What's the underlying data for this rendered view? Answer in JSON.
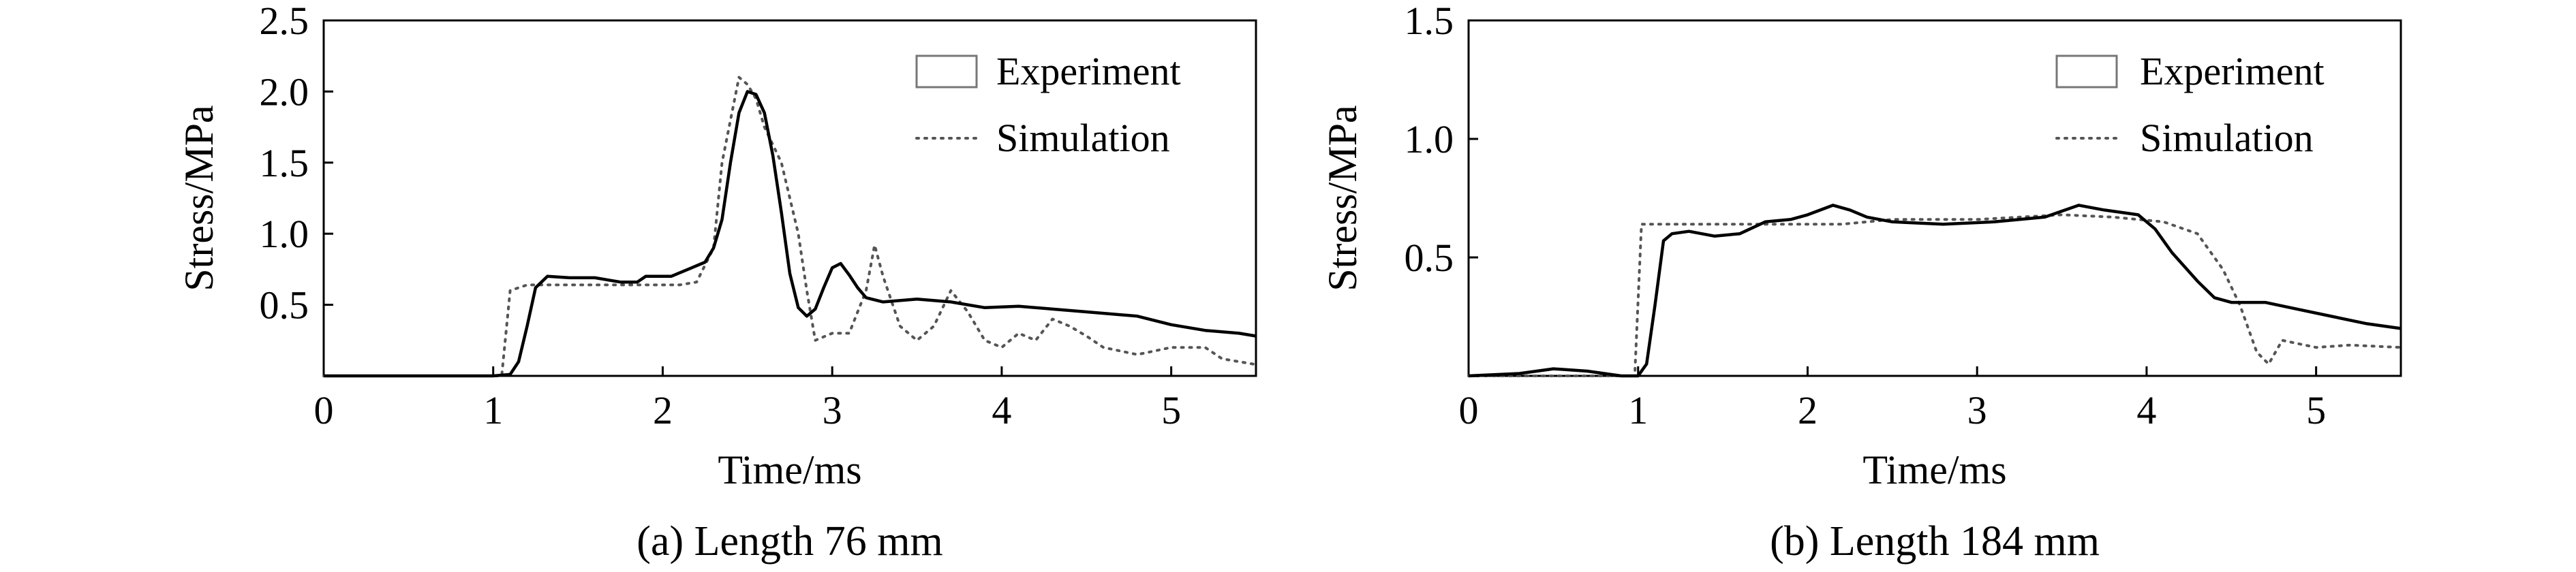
{
  "chart_data": [
    {
      "type": "line",
      "caption": "(a) Length 76 mm",
      "xlabel": "Time/ms",
      "ylabel": "Stress/MPa",
      "xlim": [
        0,
        5.5
      ],
      "ylim": [
        0,
        2.5
      ],
      "x_ticks": [
        "0",
        "1",
        "2",
        "3",
        "4",
        "5"
      ],
      "y_ticks": [
        "0.5",
        "1.0",
        "1.5",
        "2.0",
        "2.5"
      ],
      "grid": false,
      "legend_position": "top-right",
      "series": [
        {
          "name": "Experiment",
          "style": "solid",
          "color": "#000000",
          "points": [
            [
              0,
              0
            ],
            [
              1.0,
              0
            ],
            [
              1.1,
              0.01
            ],
            [
              1.15,
              0.1
            ],
            [
              1.2,
              0.35
            ],
            [
              1.25,
              0.62
            ],
            [
              1.32,
              0.7
            ],
            [
              1.45,
              0.69
            ],
            [
              1.6,
              0.69
            ],
            [
              1.75,
              0.66
            ],
            [
              1.85,
              0.66
            ],
            [
              1.9,
              0.7
            ],
            [
              2.05,
              0.7
            ],
            [
              2.15,
              0.75
            ],
            [
              2.25,
              0.8
            ],
            [
              2.3,
              0.9
            ],
            [
              2.35,
              1.1
            ],
            [
              2.4,
              1.5
            ],
            [
              2.45,
              1.85
            ],
            [
              2.5,
              2.0
            ],
            [
              2.55,
              1.98
            ],
            [
              2.6,
              1.85
            ],
            [
              2.65,
              1.55
            ],
            [
              2.7,
              1.15
            ],
            [
              2.75,
              0.72
            ],
            [
              2.8,
              0.48
            ],
            [
              2.85,
              0.42
            ],
            [
              2.9,
              0.47
            ],
            [
              2.95,
              0.62
            ],
            [
              3.0,
              0.76
            ],
            [
              3.05,
              0.79
            ],
            [
              3.1,
              0.71
            ],
            [
              3.15,
              0.62
            ],
            [
              3.2,
              0.55
            ],
            [
              3.3,
              0.52
            ],
            [
              3.5,
              0.54
            ],
            [
              3.7,
              0.52
            ],
            [
              3.9,
              0.48
            ],
            [
              4.1,
              0.49
            ],
            [
              4.3,
              0.47
            ],
            [
              4.5,
              0.45
            ],
            [
              4.8,
              0.42
            ],
            [
              5.0,
              0.36
            ],
            [
              5.2,
              0.32
            ],
            [
              5.4,
              0.3
            ],
            [
              5.5,
              0.28
            ]
          ]
        },
        {
          "name": "Simulation",
          "style": "dotted",
          "color": "#555555",
          "points": [
            [
              0,
              0
            ],
            [
              1.05,
              0
            ],
            [
              1.1,
              0.6
            ],
            [
              1.2,
              0.64
            ],
            [
              1.5,
              0.64
            ],
            [
              1.8,
              0.64
            ],
            [
              2.1,
              0.64
            ],
            [
              2.2,
              0.66
            ],
            [
              2.3,
              0.9
            ],
            [
              2.35,
              1.5
            ],
            [
              2.45,
              2.1
            ],
            [
              2.5,
              2.05
            ],
            [
              2.55,
              1.95
            ],
            [
              2.6,
              1.75
            ],
            [
              2.7,
              1.5
            ],
            [
              2.8,
              1.0
            ],
            [
              2.85,
              0.6
            ],
            [
              2.9,
              0.25
            ],
            [
              3.0,
              0.3
            ],
            [
              3.1,
              0.3
            ],
            [
              3.2,
              0.6
            ],
            [
              3.25,
              0.92
            ],
            [
              3.3,
              0.7
            ],
            [
              3.4,
              0.35
            ],
            [
              3.5,
              0.25
            ],
            [
              3.6,
              0.35
            ],
            [
              3.7,
              0.6
            ],
            [
              3.8,
              0.45
            ],
            [
              3.9,
              0.25
            ],
            [
              4.0,
              0.2
            ],
            [
              4.1,
              0.3
            ],
            [
              4.2,
              0.25
            ],
            [
              4.3,
              0.4
            ],
            [
              4.4,
              0.35
            ],
            [
              4.5,
              0.28
            ],
            [
              4.6,
              0.2
            ],
            [
              4.8,
              0.15
            ],
            [
              5.0,
              0.2
            ],
            [
              5.2,
              0.2
            ],
            [
              5.3,
              0.12
            ],
            [
              5.4,
              0.1
            ],
            [
              5.5,
              0.08
            ]
          ]
        }
      ]
    },
    {
      "type": "line",
      "caption": "(b) Length 184 mm",
      "xlabel": "Time/ms",
      "ylabel": "Stress/MPa",
      "xlim": [
        0,
        5.5
      ],
      "ylim": [
        0,
        1.5
      ],
      "x_ticks": [
        "0",
        "1",
        "2",
        "3",
        "4",
        "5"
      ],
      "y_ticks": [
        "0.5",
        "1.0",
        "1.5"
      ],
      "grid": false,
      "legend_position": "top-right",
      "series": [
        {
          "name": "Experiment",
          "style": "solid",
          "color": "#000000",
          "points": [
            [
              0,
              0
            ],
            [
              0.3,
              0.01
            ],
            [
              0.5,
              0.03
            ],
            [
              0.7,
              0.02
            ],
            [
              0.9,
              0.0
            ],
            [
              1.0,
              0.0
            ],
            [
              1.05,
              0.05
            ],
            [
              1.1,
              0.3
            ],
            [
              1.15,
              0.57
            ],
            [
              1.2,
              0.6
            ],
            [
              1.3,
              0.61
            ],
            [
              1.45,
              0.59
            ],
            [
              1.6,
              0.6
            ],
            [
              1.75,
              0.65
            ],
            [
              1.9,
              0.66
            ],
            [
              2.0,
              0.68
            ],
            [
              2.15,
              0.72
            ],
            [
              2.25,
              0.7
            ],
            [
              2.35,
              0.67
            ],
            [
              2.5,
              0.65
            ],
            [
              2.8,
              0.64
            ],
            [
              3.1,
              0.65
            ],
            [
              3.4,
              0.67
            ],
            [
              3.6,
              0.72
            ],
            [
              3.75,
              0.7
            ],
            [
              3.95,
              0.68
            ],
            [
              4.05,
              0.62
            ],
            [
              4.15,
              0.52
            ],
            [
              4.3,
              0.4
            ],
            [
              4.4,
              0.33
            ],
            [
              4.5,
              0.31
            ],
            [
              4.7,
              0.31
            ],
            [
              4.9,
              0.28
            ],
            [
              5.1,
              0.25
            ],
            [
              5.3,
              0.22
            ],
            [
              5.5,
              0.2
            ]
          ]
        },
        {
          "name": "Simulation",
          "style": "dotted",
          "color": "#555555",
          "points": [
            [
              0,
              0
            ],
            [
              0.98,
              0
            ],
            [
              1.02,
              0.64
            ],
            [
              1.2,
              0.64
            ],
            [
              1.5,
              0.64
            ],
            [
              1.8,
              0.64
            ],
            [
              2.0,
              0.64
            ],
            [
              2.2,
              0.64
            ],
            [
              2.5,
              0.66
            ],
            [
              3.0,
              0.66
            ],
            [
              3.5,
              0.68
            ],
            [
              3.8,
              0.67
            ],
            [
              4.1,
              0.65
            ],
            [
              4.3,
              0.6
            ],
            [
              4.45,
              0.45
            ],
            [
              4.55,
              0.3
            ],
            [
              4.65,
              0.1
            ],
            [
              4.72,
              0.05
            ],
            [
              4.8,
              0.15
            ],
            [
              5.0,
              0.12
            ],
            [
              5.2,
              0.13
            ],
            [
              5.5,
              0.12
            ]
          ]
        }
      ]
    }
  ]
}
